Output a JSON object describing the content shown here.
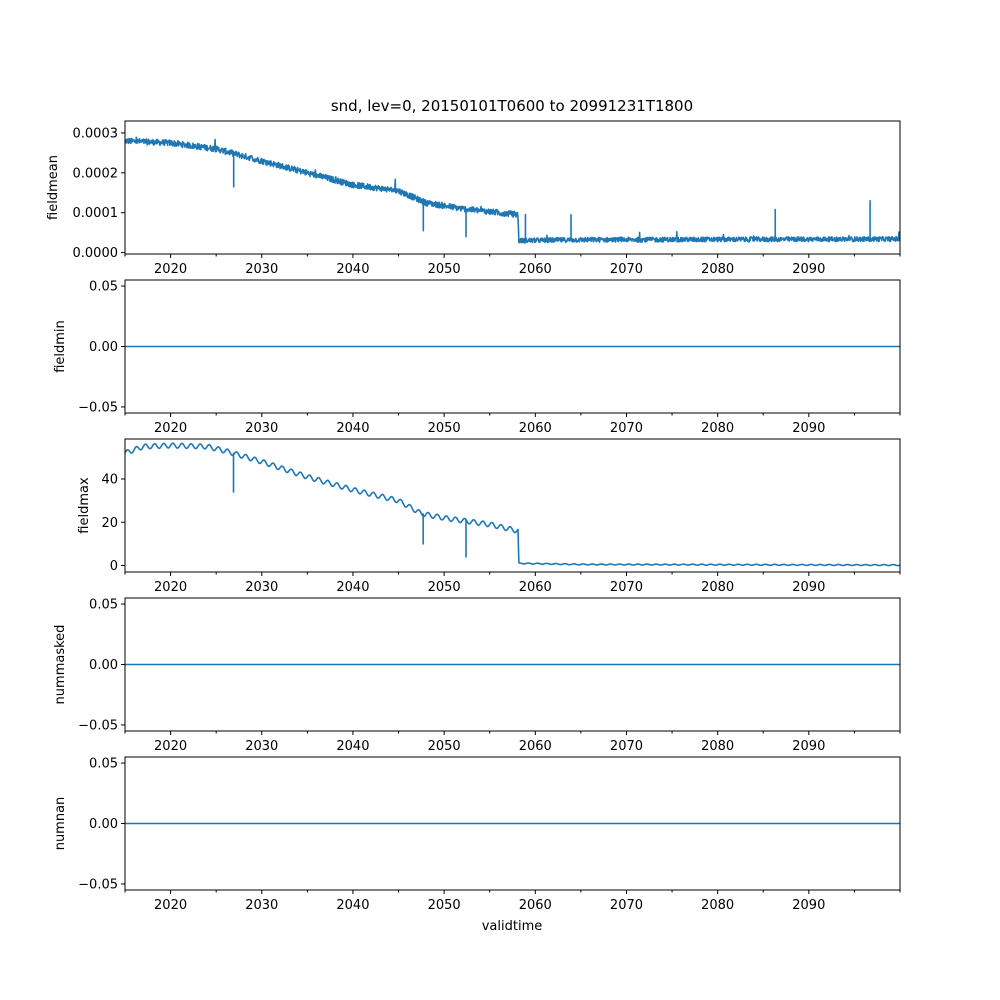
{
  "chart_data": {
    "type": "line",
    "title": "snd, lev=0, 20150101T0600 to 20991231T1800",
    "xlabel": "validtime",
    "xlim": [
      2015.0,
      2100.0
    ],
    "x_ticks": [
      2020,
      2030,
      2040,
      2050,
      2060,
      2070,
      2080,
      2090
    ],
    "x_tick_labels": [
      "2020",
      "2030",
      "2040",
      "2050",
      "2060",
      "2070",
      "2080",
      "2090"
    ],
    "color": "#1f77b4",
    "panels": [
      {
        "ylabel": "fieldmean",
        "ylim": [
          -3.5e-06,
          0.00033
        ],
        "y_ticks": [
          0.0,
          0.0001,
          0.0002,
          0.0003
        ],
        "y_tick_labels": [
          "0.0000",
          "0.0001",
          "0.0002",
          "0.0003"
        ],
        "baseline": {
          "x": [
            2015.0,
            2020.0,
            2025.0,
            2030.0,
            2035.0,
            2040.0,
            2045.0,
            2048.0,
            2052.0,
            2058.1,
            2058.2,
            2065.0,
            2080.0,
            2100.0
          ],
          "y": [
            0.00028,
            0.000275,
            0.00026,
            0.00023,
            0.0002,
            0.00017,
            0.000155,
            0.000125,
            0.00011,
            9.5e-05,
            3e-05,
            3.2e-05,
            3.3e-05,
            3.4e-05
          ]
        },
        "noise": {
          "pre_2058": 1.5e-05,
          "post_2058": 1.2e-05
        },
        "spikes": [
          {
            "x": 2026.9,
            "y": 0.000165
          },
          {
            "x": 2047.7,
            "y": 5.5e-05
          },
          {
            "x": 2052.4,
            "y": 4e-05
          },
          {
            "x": 2058.9,
            "y": 9.5e-05
          },
          {
            "x": 2063.9,
            "y": 9.5e-05
          },
          {
            "x": 2086.3,
            "y": 0.000108
          },
          {
            "x": 2096.7,
            "y": 0.00013
          }
        ]
      },
      {
        "ylabel": "fieldmin",
        "ylim": [
          -0.055,
          0.055
        ],
        "y_ticks": [
          -0.05,
          0.0,
          0.05
        ],
        "y_tick_labels": [
          "−0.05",
          "0.00",
          "0.05"
        ],
        "baseline": {
          "x": [
            2015.0,
            2100.0
          ],
          "y": [
            0.0,
            0.0
          ]
        }
      },
      {
        "ylabel": "fieldmax",
        "ylim": [
          -3.0,
          58.5
        ],
        "y_ticks": [
          0,
          20,
          40
        ],
        "y_tick_labels": [
          "0",
          "20",
          "40"
        ],
        "baseline": {
          "x": [
            2015.0,
            2017.0,
            2020.0,
            2024.0,
            2026.0,
            2030.0,
            2035.0,
            2040.0,
            2045.0,
            2047.5,
            2050.0,
            2055.0,
            2058.1,
            2058.2,
            2065.0,
            2100.0
          ],
          "y": [
            52.0,
            55.0,
            55.5,
            55.0,
            53.0,
            48.0,
            41.0,
            35.0,
            30.0,
            24.0,
            22.0,
            19.0,
            16.0,
            1.0,
            0.5,
            0.2
          ]
        },
        "wave_amplitude": 1.1,
        "spikes": [
          {
            "x": 2026.9,
            "y": 34.0
          },
          {
            "x": 2047.7,
            "y": 10.0
          },
          {
            "x": 2052.4,
            "y": 4.0
          }
        ]
      },
      {
        "ylabel": "nummasked",
        "ylim": [
          -0.055,
          0.055
        ],
        "y_ticks": [
          -0.05,
          0.0,
          0.05
        ],
        "y_tick_labels": [
          "−0.05",
          "0.00",
          "0.05"
        ],
        "baseline": {
          "x": [
            2015.0,
            2100.0
          ],
          "y": [
            0.0,
            0.0
          ]
        }
      },
      {
        "ylabel": "numnan",
        "ylim": [
          -0.055,
          0.055
        ],
        "y_ticks": [
          -0.05,
          0.0,
          0.05
        ],
        "y_tick_labels": [
          "−0.05",
          "0.00",
          "0.05"
        ],
        "baseline": {
          "x": [
            2015.0,
            2100.0
          ],
          "y": [
            0.0,
            0.0
          ]
        }
      }
    ]
  }
}
